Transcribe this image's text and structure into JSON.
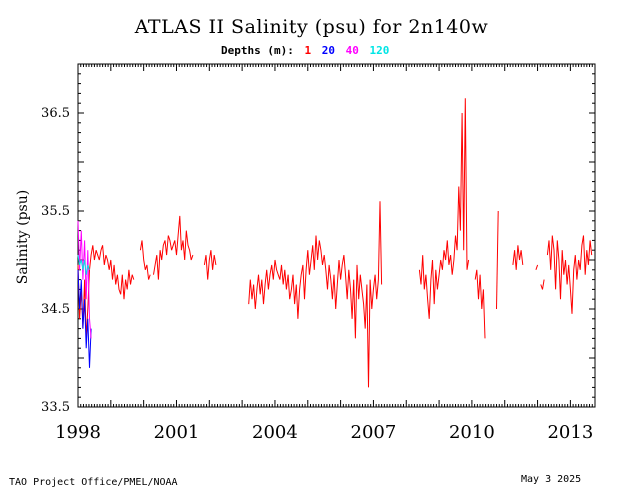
{
  "header": {
    "title": "ATLAS II Salinity (psu) for 2n140w",
    "depths_label": "Depths (m):"
  },
  "footer": {
    "credit": "TAO Project Office/PMEL/NOAA",
    "date": "May  3 2025"
  },
  "chart_data": {
    "type": "line",
    "title": "ATLAS II Salinity (psu) for 2n140w",
    "xlabel": "",
    "ylabel": "Salinity (psu)",
    "xlim": [
      1998.0,
      2013.75
    ],
    "ylim": [
      33.5,
      37.0
    ],
    "x_tick_labels": [
      "1998",
      "2001",
      "2004",
      "2007",
      "2010",
      "2013"
    ],
    "y_tick_labels": [
      "33.5",
      "34.5",
      "35.5",
      "36.5"
    ],
    "grid": false,
    "legend": "top",
    "series": [
      {
        "name": "1",
        "color": "#ff0000",
        "segments": [
          {
            "x": [
              1998.0,
              1998.05,
              1998.1,
              1998.15,
              1998.2,
              1998.25,
              1998.3,
              1998.35,
              1998.4,
              1998.45,
              1998.5,
              1998.55,
              1998.6,
              1998.65,
              1998.7,
              1998.75,
              1998.8,
              1998.85,
              1998.9,
              1998.95,
              1999.0,
              1999.05,
              1999.1,
              1999.15,
              1999.2,
              1999.25,
              1999.3,
              1999.35,
              1999.4,
              1999.45,
              1999.5,
              1999.55,
              1999.6,
              1999.65,
              1999.7
            ],
            "y": [
              34.95,
              34.4,
              34.7,
              34.3,
              34.8,
              34.2,
              34.5,
              34.9,
              35.05,
              35.15,
              35.0,
              35.1,
              35.05,
              35.0,
              35.1,
              35.15,
              34.95,
              35.05,
              35.0,
              34.9,
              35.0,
              34.8,
              34.95,
              34.75,
              34.85,
              34.7,
              34.65,
              34.85,
              34.6,
              34.8,
              34.7,
              34.9,
              34.75,
              34.85,
              34.8
            ]
          },
          {
            "x": [
              1999.9,
              1999.95,
              2000.0,
              2000.05,
              2000.1,
              2000.15,
              2000.2
            ],
            "y": [
              35.1,
              35.2,
              35.0,
              34.9,
              34.95,
              34.8,
              34.85
            ]
          },
          {
            "x": [
              2000.3,
              2000.35,
              2000.4,
              2000.45,
              2000.5,
              2000.55,
              2000.6,
              2000.65,
              2000.7,
              2000.75,
              2000.8,
              2000.85,
              2000.9,
              2000.95,
              2001.0,
              2001.05,
              2001.1,
              2001.15,
              2001.2,
              2001.25,
              2001.3,
              2001.35,
              2001.4,
              2001.45,
              2001.5
            ],
            "y": [
              34.85,
              34.95,
              35.05,
              34.8,
              35.1,
              35.0,
              35.15,
              35.2,
              35.05,
              35.25,
              35.2,
              35.1,
              35.15,
              35.2,
              35.05,
              35.25,
              35.45,
              35.1,
              35.2,
              35.0,
              35.3,
              35.15,
              35.1,
              35.0,
              35.05
            ]
          },
          {
            "x": [
              2001.85,
              2001.9,
              2001.95,
              2002.0,
              2002.05,
              2002.1,
              2002.15,
              2002.2
            ],
            "y": [
              34.95,
              35.05,
              34.8,
              35.0,
              35.1,
              34.9,
              35.05,
              34.95
            ]
          },
          {
            "x": [
              2003.2,
              2003.25,
              2003.3,
              2003.35,
              2003.4,
              2003.45,
              2003.5,
              2003.55,
              2003.6,
              2003.65,
              2003.7,
              2003.75,
              2003.8,
              2003.85,
              2003.9,
              2003.95,
              2004.0,
              2004.05,
              2004.1,
              2004.15,
              2004.2,
              2004.25,
              2004.3,
              2004.35,
              2004.4,
              2004.45,
              2004.5,
              2004.55,
              2004.6,
              2004.65,
              2004.7,
              2004.75,
              2004.8,
              2004.85,
              2004.9,
              2004.95,
              2005.0,
              2005.05,
              2005.1,
              2005.15,
              2005.2,
              2005.25,
              2005.3,
              2005.35,
              2005.4,
              2005.45,
              2005.5,
              2005.55,
              2005.6,
              2005.65,
              2005.7,
              2005.75,
              2005.8,
              2005.85,
              2005.9,
              2005.95,
              2006.0,
              2006.05,
              2006.1,
              2006.15,
              2006.2,
              2006.25,
              2006.3,
              2006.35,
              2006.4,
              2006.45,
              2006.5,
              2006.55,
              2006.6,
              2006.65,
              2006.7,
              2006.75,
              2006.8,
              2006.85,
              2006.9,
              2006.95,
              2007.0,
              2007.05,
              2007.1,
              2007.15,
              2007.2,
              2007.25
            ],
            "y": [
              34.55,
              34.8,
              34.6,
              34.75,
              34.5,
              34.7,
              34.85,
              34.65,
              34.8,
              34.55,
              34.75,
              34.9,
              34.7,
              34.85,
              34.95,
              34.8,
              35.0,
              34.9,
              34.85,
              34.8,
              34.95,
              34.75,
              34.9,
              34.7,
              34.85,
              34.6,
              34.7,
              34.85,
              34.55,
              34.75,
              34.4,
              34.7,
              34.85,
              34.95,
              34.6,
              34.9,
              35.1,
              34.85,
              35.0,
              35.15,
              34.9,
              35.25,
              35.0,
              35.2,
              35.1,
              34.95,
              35.05,
              34.9,
              34.7,
              34.95,
              34.8,
              34.6,
              34.85,
              34.5,
              34.75,
              35.0,
              34.8,
              34.95,
              35.05,
              34.85,
              34.6,
              34.9,
              34.7,
              34.4,
              34.8,
              34.2,
              34.95,
              34.6,
              34.85,
              34.7,
              34.55,
              34.3,
              34.75,
              33.7,
              34.8,
              34.5,
              34.7,
              34.85,
              34.6,
              34.8,
              35.6,
              34.75
            ]
          },
          {
            "x": [
              2008.4,
              2008.45,
              2008.5,
              2008.55,
              2008.6,
              2008.65,
              2008.7,
              2008.75,
              2008.8,
              2008.85,
              2008.9,
              2008.95,
              2009.0,
              2009.05,
              2009.1,
              2009.15,
              2009.2,
              2009.25,
              2009.3,
              2009.35,
              2009.4,
              2009.45,
              2009.5,
              2009.55,
              2009.6,
              2009.65,
              2009.7,
              2009.75,
              2009.8,
              2009.85,
              2009.9
            ],
            "y": [
              34.9,
              34.75,
              35.05,
              34.7,
              34.85,
              34.6,
              34.4,
              34.8,
              35.0,
              34.55,
              34.9,
              34.7,
              34.85,
              35.0,
              34.9,
              35.1,
              35.0,
              35.2,
              34.95,
              35.05,
              34.85,
              35.0,
              35.25,
              35.1,
              35.75,
              35.3,
              36.5,
              35.1,
              36.65,
              34.9,
              35.0
            ]
          },
          {
            "x": [
              2010.1,
              2010.15,
              2010.2,
              2010.25,
              2010.3,
              2010.35,
              2010.4
            ],
            "y": [
              34.8,
              34.9,
              34.6,
              34.85,
              34.5,
              34.7,
              34.2
            ]
          },
          {
            "x": [
              2010.75,
              2010.8
            ],
            "y": [
              34.5,
              35.5
            ]
          },
          {
            "x": [
              2011.25,
              2011.3,
              2011.35,
              2011.4,
              2011.45,
              2011.5,
              2011.55
            ],
            "y": [
              34.95,
              35.1,
              34.9,
              35.15,
              35.0,
              35.1,
              34.95
            ]
          },
          {
            "x": [
              2011.95,
              2012.0
            ],
            "y": [
              34.9,
              34.95
            ]
          },
          {
            "x": [
              2012.1,
              2012.15,
              2012.2
            ],
            "y": [
              34.75,
              34.7,
              34.8
            ]
          },
          {
            "x": [
              2012.3,
              2012.35,
              2012.4,
              2012.45,
              2012.5,
              2012.55,
              2012.6,
              2012.65,
              2012.7,
              2012.75,
              2012.8,
              2012.85,
              2012.9,
              2012.95,
              2013.0,
              2013.05,
              2013.1,
              2013.15,
              2013.2,
              2013.25,
              2013.3,
              2013.35,
              2013.4,
              2013.45,
              2013.5,
              2013.55,
              2013.6,
              2013.65
            ],
            "y": [
              35.05,
              35.2,
              34.9,
              35.25,
              35.1,
              34.7,
              35.2,
              35.0,
              34.6,
              35.1,
              34.85,
              35.0,
              34.75,
              34.95,
              34.7,
              34.45,
              34.9,
              35.05,
              34.8,
              35.0,
              34.9,
              35.15,
              35.25,
              34.85,
              35.1,
              34.95,
              35.2,
              35.05
            ]
          }
        ]
      },
      {
        "name": "20",
        "color": "#0000ff",
        "segments": [
          {
            "x": [
              1998.0,
              1998.05,
              1998.1,
              1998.15,
              1998.2,
              1998.25,
              1998.3,
              1998.35,
              1998.4
            ],
            "y": [
              34.9,
              34.5,
              34.8,
              34.3,
              34.6,
              34.1,
              34.4,
              33.9,
              34.3
            ]
          }
        ]
      },
      {
        "name": "40",
        "color": "#ff00ff",
        "segments": [
          {
            "x": [
              1998.0,
              1998.05,
              1998.1,
              1998.15,
              1998.2,
              1998.25,
              1998.3,
              1998.35,
              1998.4
            ],
            "y": [
              35.4,
              34.9,
              35.3,
              34.8,
              35.2,
              34.6,
              35.1,
              34.4,
              34.2
            ]
          }
        ]
      },
      {
        "name": "120",
        "color": "#00e5e5",
        "segments": [
          {
            "x": [
              1998.0,
              1998.05,
              1998.1,
              1998.15,
              1998.2,
              1998.25,
              1998.3,
              1998.35
            ],
            "y": [
              35.05,
              34.95,
              35.0,
              34.9,
              35.0,
              34.85,
              34.95,
              34.9
            ]
          }
        ]
      }
    ]
  }
}
